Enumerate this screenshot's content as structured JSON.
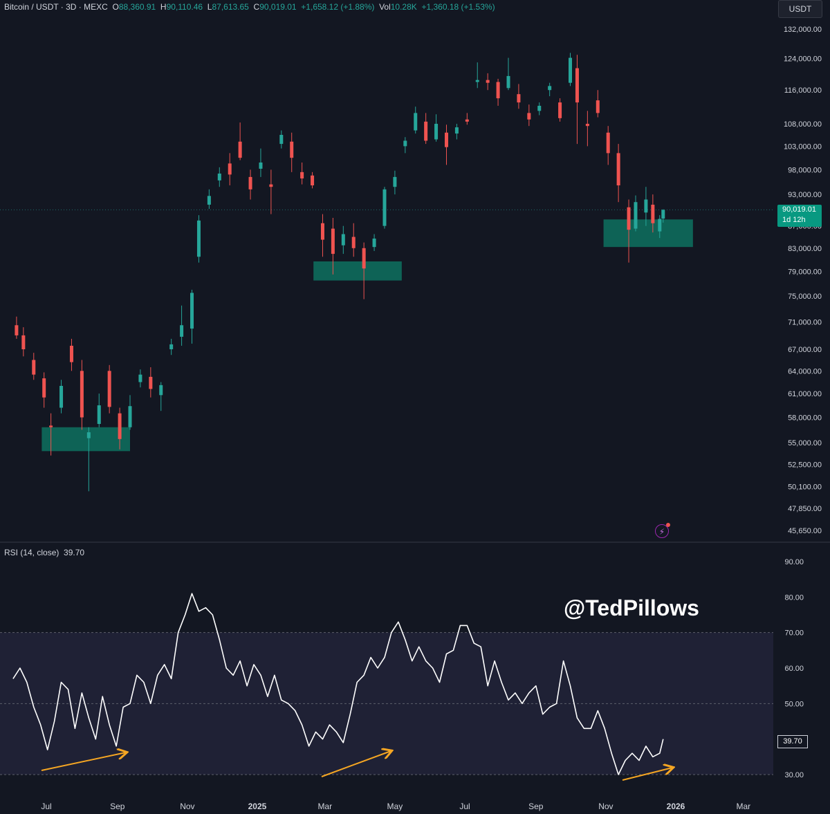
{
  "header": {
    "symbol": "Bitcoin / USDT · 3D · MEXC",
    "o_label": "O",
    "o": "88,360.91",
    "h_label": "H",
    "h": "90,110.46",
    "l_label": "L",
    "l": "87,613.65",
    "c_label": "C",
    "c": "90,019.01",
    "change": "+1,658.12 (+1.88%)",
    "vol_label": "Vol",
    "vol": "10.28K",
    "vol_change": "+1,360.18 (+1.53%)"
  },
  "currency": "USDT",
  "last_price": {
    "price": "90,019.01",
    "countdown": "1d 12h"
  },
  "watermark": "@TedPillows",
  "rsi": {
    "title": "RSI (14, close)",
    "value": "39.70"
  },
  "colors": {
    "up": "#26a69a",
    "down": "#ef5350",
    "zone": "#0e6b5c",
    "arrow": "#f5a623",
    "rsi_line": "#ffffff",
    "rsi_band": "#1f2135"
  },
  "chart_data": [
    {
      "type": "candlestick",
      "title": "",
      "scale": "log",
      "ylim": [
        45650,
        132000
      ],
      "y_ticks": [
        45650,
        47850,
        50100,
        52500,
        55000,
        58000,
        61000,
        64000,
        67000,
        71000,
        75000,
        79000,
        83000,
        87000,
        93000,
        98000,
        103000,
        108000,
        116000,
        124000,
        132000
      ],
      "y_tick_labels": [
        "45,650.00",
        "47,850.00",
        "50,100.00",
        "52,500.00",
        "55,000.00",
        "58,000.00",
        "61,000.00",
        "64,000.00",
        "67,000.00",
        "71,000.00",
        "75,000.00",
        "79,000.00",
        "83,000.00",
        "87,000.00",
        "93,000.00",
        "98,000.00",
        "103,000.00",
        "108,000.00",
        "116,000.00",
        "124,000.00",
        "132,000.00"
      ],
      "x_ticks": [
        "2024-07-01",
        "2024-09-01",
        "2024-11-01",
        "2025-01-01",
        "2025-03-01",
        "2025-05-01",
        "2025-07-01",
        "2025-09-01",
        "2025-11-01",
        "2026-01-01",
        "2026-03-01"
      ],
      "x_tick_labels": [
        "Jul",
        "Sep",
        "Nov",
        "2025",
        "Mar",
        "May",
        "Jul",
        "Sep",
        "Nov",
        "2026",
        "Mar"
      ],
      "last_price": 90019.01,
      "candles": [
        {
          "date": "2024-06-05",
          "open": 70500,
          "high": 71800,
          "low": 68500,
          "close": 69000
        },
        {
          "date": "2024-06-11",
          "open": 69000,
          "high": 70200,
          "low": 66000,
          "close": 67000
        },
        {
          "date": "2024-06-20",
          "open": 65500,
          "high": 66500,
          "low": 62800,
          "close": 63500
        },
        {
          "date": "2024-06-29",
          "open": 63000,
          "high": 63800,
          "low": 59200,
          "close": 60500
        },
        {
          "date": "2024-07-05",
          "open": 57000,
          "high": 58500,
          "low": 53500,
          "close": 56800
        },
        {
          "date": "2024-07-14",
          "open": 59200,
          "high": 62800,
          "low": 58500,
          "close": 62000
        },
        {
          "date": "2024-07-23",
          "open": 67500,
          "high": 68500,
          "low": 64000,
          "close": 65200
        },
        {
          "date": "2024-08-01",
          "open": 64000,
          "high": 65500,
          "low": 56500,
          "close": 58000
        },
        {
          "date": "2024-08-07",
          "open": 55500,
          "high": 56800,
          "low": 49600,
          "close": 56200
        },
        {
          "date": "2024-08-16",
          "open": 57200,
          "high": 61000,
          "low": 56800,
          "close": 59500
        },
        {
          "date": "2024-08-25",
          "open": 64000,
          "high": 64800,
          "low": 58500,
          "close": 59300
        },
        {
          "date": "2024-09-03",
          "open": 58500,
          "high": 59200,
          "low": 54200,
          "close": 55400
        },
        {
          "date": "2024-09-12",
          "open": 56800,
          "high": 60800,
          "low": 56500,
          "close": 59400
        },
        {
          "date": "2024-09-21",
          "open": 62500,
          "high": 64200,
          "low": 61800,
          "close": 63500
        },
        {
          "date": "2024-09-30",
          "open": 63200,
          "high": 64500,
          "low": 60500,
          "close": 61600
        },
        {
          "date": "2024-10-09",
          "open": 60800,
          "high": 62500,
          "low": 58800,
          "close": 62100
        },
        {
          "date": "2024-10-18",
          "open": 67000,
          "high": 68500,
          "low": 66200,
          "close": 67700
        },
        {
          "date": "2024-10-27",
          "open": 68800,
          "high": 73500,
          "low": 67500,
          "close": 70500
        },
        {
          "date": "2024-11-05",
          "open": 70000,
          "high": 76000,
          "low": 67800,
          "close": 75500
        },
        {
          "date": "2024-11-11",
          "open": 81500,
          "high": 89000,
          "low": 80500,
          "close": 88000
        },
        {
          "date": "2024-11-20",
          "open": 91000,
          "high": 94000,
          "low": 90200,
          "close": 92700
        },
        {
          "date": "2024-11-29",
          "open": 95800,
          "high": 98500,
          "low": 94500,
          "close": 97200
        },
        {
          "date": "2024-12-08",
          "open": 99300,
          "high": 101500,
          "low": 94800,
          "close": 97000
        },
        {
          "date": "2024-12-17",
          "open": 104000,
          "high": 108300,
          "low": 100000,
          "close": 100500
        },
        {
          "date": "2024-12-26",
          "open": 96500,
          "high": 98000,
          "low": 92000,
          "close": 94000
        },
        {
          "date": "2025-01-04",
          "open": 98200,
          "high": 102500,
          "low": 96500,
          "close": 99500
        },
        {
          "date": "2025-01-13",
          "open": 95000,
          "high": 98000,
          "low": 89200,
          "close": 94500
        },
        {
          "date": "2025-01-22",
          "open": 103500,
          "high": 106500,
          "low": 102500,
          "close": 105500
        },
        {
          "date": "2025-01-31",
          "open": 104000,
          "high": 106000,
          "low": 97500,
          "close": 100500
        },
        {
          "date": "2025-02-09",
          "open": 97500,
          "high": 99500,
          "low": 95000,
          "close": 96200
        },
        {
          "date": "2025-02-18",
          "open": 96800,
          "high": 97500,
          "low": 94200,
          "close": 94800
        },
        {
          "date": "2025-02-27",
          "open": 87500,
          "high": 89200,
          "low": 81500,
          "close": 84500
        },
        {
          "date": "2025-03-08",
          "open": 86500,
          "high": 88500,
          "low": 78500,
          "close": 82000
        },
        {
          "date": "2025-03-17",
          "open": 83500,
          "high": 87000,
          "low": 82000,
          "close": 85500
        },
        {
          "date": "2025-03-26",
          "open": 85000,
          "high": 87500,
          "low": 81500,
          "close": 83000
        },
        {
          "date": "2025-04-04",
          "open": 83000,
          "high": 84000,
          "low": 74500,
          "close": 79500
        },
        {
          "date": "2025-04-13",
          "open": 83200,
          "high": 85500,
          "low": 82500,
          "close": 84700
        },
        {
          "date": "2025-04-22",
          "open": 87000,
          "high": 94500,
          "low": 86500,
          "close": 94000
        },
        {
          "date": "2025-05-01",
          "open": 94500,
          "high": 97800,
          "low": 93000,
          "close": 96500
        },
        {
          "date": "2025-05-10",
          "open": 103000,
          "high": 105000,
          "low": 101500,
          "close": 104200
        },
        {
          "date": "2025-05-19",
          "open": 106500,
          "high": 112000,
          "low": 105800,
          "close": 110500
        },
        {
          "date": "2025-05-28",
          "open": 108500,
          "high": 110500,
          "low": 103500,
          "close": 104200
        },
        {
          "date": "2025-06-06",
          "open": 104500,
          "high": 110200,
          "low": 104000,
          "close": 108000
        },
        {
          "date": "2025-06-15",
          "open": 106000,
          "high": 107800,
          "low": 99000,
          "close": 102800
        },
        {
          "date": "2025-06-24",
          "open": 105800,
          "high": 108000,
          "low": 104500,
          "close": 107200
        },
        {
          "date": "2025-07-03",
          "open": 109000,
          "high": 110500,
          "low": 107800,
          "close": 108500
        },
        {
          "date": "2025-07-12",
          "open": 118000,
          "high": 123000,
          "low": 116500,
          "close": 118500
        },
        {
          "date": "2025-07-21",
          "open": 118500,
          "high": 120200,
          "low": 116000,
          "close": 117800
        },
        {
          "date": "2025-07-30",
          "open": 118000,
          "high": 118800,
          "low": 112200,
          "close": 114000
        },
        {
          "date": "2025-08-08",
          "open": 116500,
          "high": 124200,
          "low": 116000,
          "close": 119500
        },
        {
          "date": "2025-08-17",
          "open": 115000,
          "high": 117500,
          "low": 111500,
          "close": 113000
        },
        {
          "date": "2025-08-26",
          "open": 110500,
          "high": 112500,
          "low": 107500,
          "close": 109000
        },
        {
          "date": "2025-09-04",
          "open": 111000,
          "high": 113000,
          "low": 110000,
          "close": 112200
        },
        {
          "date": "2025-09-13",
          "open": 116000,
          "high": 117800,
          "low": 114500,
          "close": 117000
        },
        {
          "date": "2025-09-22",
          "open": 113000,
          "high": 114000,
          "low": 108500,
          "close": 109300
        },
        {
          "date": "2025-10-01",
          "open": 117800,
          "high": 125500,
          "low": 117000,
          "close": 124200
        },
        {
          "date": "2025-10-07",
          "open": 121500,
          "high": 125000,
          "low": 103500,
          "close": 113000
        },
        {
          "date": "2025-10-16",
          "open": 108000,
          "high": 111000,
          "low": 103000,
          "close": 107500
        },
        {
          "date": "2025-10-25",
          "open": 113500,
          "high": 116000,
          "low": 109500,
          "close": 110500
        },
        {
          "date": "2025-11-03",
          "open": 106000,
          "high": 107500,
          "low": 99000,
          "close": 101500
        },
        {
          "date": "2025-11-12",
          "open": 101500,
          "high": 103500,
          "low": 91500,
          "close": 94800
        },
        {
          "date": "2025-11-21",
          "open": 90500,
          "high": 92000,
          "low": 80500,
          "close": 86300
        },
        {
          "date": "2025-11-27",
          "open": 86500,
          "high": 92800,
          "low": 86000,
          "close": 91500
        },
        {
          "date": "2025-12-06",
          "open": 89500,
          "high": 94500,
          "low": 87000,
          "close": 92000
        },
        {
          "date": "2025-12-12",
          "open": 91000,
          "high": 93000,
          "low": 85800,
          "close": 87500
        },
        {
          "date": "2025-12-18",
          "open": 86000,
          "high": 89000,
          "low": 84800,
          "close": 88300
        },
        {
          "date": "2025-12-21",
          "open": 88360.91,
          "high": 90110.46,
          "low": 87613.65,
          "close": 90019.01
        }
      ],
      "demand_zones": [
        {
          "start": "2024-06-27",
          "end": "2024-09-12",
          "low": 54000,
          "high": 56800
        },
        {
          "start": "2025-02-19",
          "end": "2025-05-07",
          "low": 77500,
          "high": 80700
        },
        {
          "start": "2025-10-30",
          "end": "2026-01-16",
          "low": 83200,
          "high": 88200
        }
      ]
    },
    {
      "type": "line",
      "title": "RSI (14, close)",
      "ylim": [
        24,
        92
      ],
      "y_ticks": [
        30,
        50,
        60,
        70,
        80,
        90
      ],
      "y_tick_labels": [
        "30.00",
        "50.00",
        "60.00",
        "70.00",
        "80.00",
        "90.00"
      ],
      "band": [
        30,
        70
      ],
      "midline": 50,
      "last_value": 39.7,
      "series": [
        {
          "x": [
            "2024-06-02",
            "2024-06-08",
            "2024-06-14",
            "2024-06-20",
            "2024-06-26",
            "2024-07-02",
            "2024-07-08",
            "2024-07-14",
            "2024-07-20",
            "2024-07-26",
            "2024-08-01",
            "2024-08-07",
            "2024-08-13",
            "2024-08-19",
            "2024-08-25",
            "2024-08-31",
            "2024-09-06",
            "2024-09-12",
            "2024-09-18",
            "2024-09-24",
            "2024-09-30",
            "2024-10-06",
            "2024-10-12",
            "2024-10-18",
            "2024-10-24",
            "2024-10-30",
            "2024-11-05",
            "2024-11-11",
            "2024-11-17",
            "2024-11-23",
            "2024-11-29",
            "2024-12-05",
            "2024-12-11",
            "2024-12-17",
            "2024-12-23",
            "2024-12-29",
            "2025-01-04",
            "2025-01-10",
            "2025-01-16",
            "2025-01-22",
            "2025-01-28",
            "2025-02-03",
            "2025-02-09",
            "2025-02-15",
            "2025-02-21",
            "2025-02-27",
            "2025-03-05",
            "2025-03-11",
            "2025-03-17",
            "2025-03-23",
            "2025-03-29",
            "2025-04-04",
            "2025-04-10",
            "2025-04-16",
            "2025-04-22",
            "2025-04-28",
            "2025-05-04",
            "2025-05-10",
            "2025-05-16",
            "2025-05-22",
            "2025-05-28",
            "2025-06-03",
            "2025-06-09",
            "2025-06-15",
            "2025-06-21",
            "2025-06-27",
            "2025-07-03",
            "2025-07-09",
            "2025-07-15",
            "2025-07-21",
            "2025-07-27",
            "2025-08-02",
            "2025-08-08",
            "2025-08-14",
            "2025-08-20",
            "2025-08-26",
            "2025-09-01",
            "2025-09-07",
            "2025-09-13",
            "2025-09-19",
            "2025-09-25",
            "2025-10-01",
            "2025-10-07",
            "2025-10-13",
            "2025-10-19",
            "2025-10-25",
            "2025-10-31",
            "2025-11-06",
            "2025-11-12",
            "2025-11-18",
            "2025-11-24",
            "2025-11-30",
            "2025-12-06",
            "2025-12-12",
            "2025-12-18",
            "2025-12-21"
          ],
          "values": [
            57,
            60,
            56,
            49,
            44,
            37,
            45,
            56,
            54,
            43,
            53,
            46,
            40,
            52,
            44,
            38,
            49,
            50,
            58,
            56,
            50,
            58,
            61,
            57,
            70,
            75,
            81,
            76,
            77,
            75,
            68,
            60,
            58,
            62,
            55,
            61,
            58,
            52,
            58,
            51,
            50,
            48,
            44,
            38,
            42,
            40,
            44,
            42,
            39,
            47,
            56,
            58,
            63,
            60,
            63,
            70,
            73,
            68,
            62,
            66,
            62,
            60,
            56,
            64,
            65,
            72,
            72,
            67,
            66,
            55,
            62,
            56,
            51,
            53,
            50,
            53,
            55,
            47,
            49,
            50,
            62,
            55,
            46,
            43,
            43,
            48,
            43,
            36,
            30,
            34,
            36,
            34,
            38,
            35,
            36,
            40
          ]
        }
      ]
    }
  ]
}
